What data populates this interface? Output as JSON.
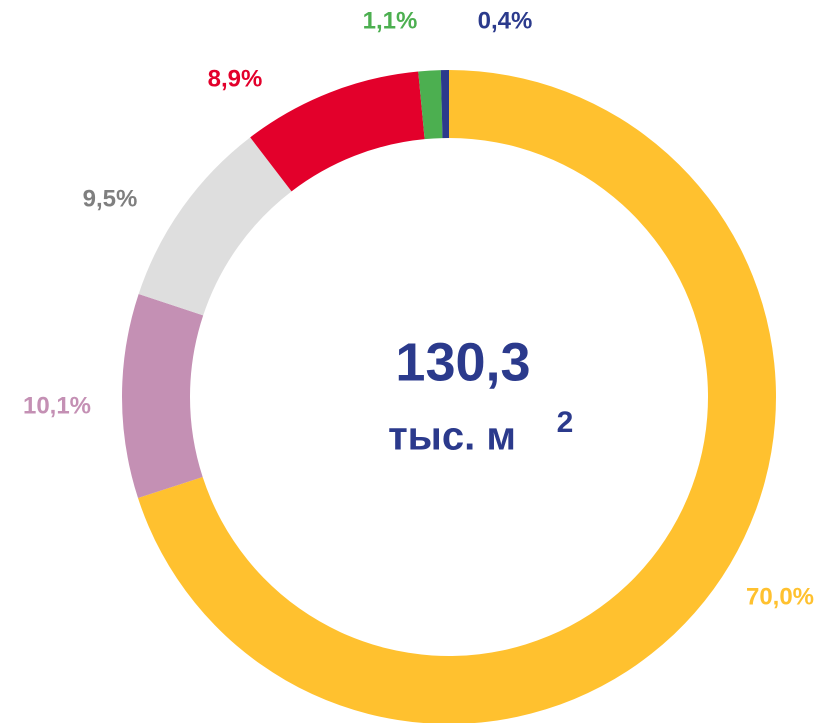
{
  "chart_data": {
    "type": "donut",
    "values": [
      70.0,
      10.1,
      9.5,
      8.9,
      1.1,
      0.4
    ],
    "value_labels": [
      "70,0%",
      "10,1%",
      "9,5%",
      "8,9%",
      "1,1%",
      "0,4%"
    ],
    "colors": [
      "#FFC12F",
      "#C490B4",
      "#DEDEDE",
      "#E3002B",
      "#4CAF50",
      "#2B3A8C"
    ],
    "label_colors": [
      "#FFC12F",
      "#C490B4",
      "#7F7F7F",
      "#E3002B",
      "#4CAF50",
      "#2B3A8C"
    ],
    "center_value": "130,3",
    "center_unit": "тыс. м",
    "center_unit_sup": "2"
  }
}
